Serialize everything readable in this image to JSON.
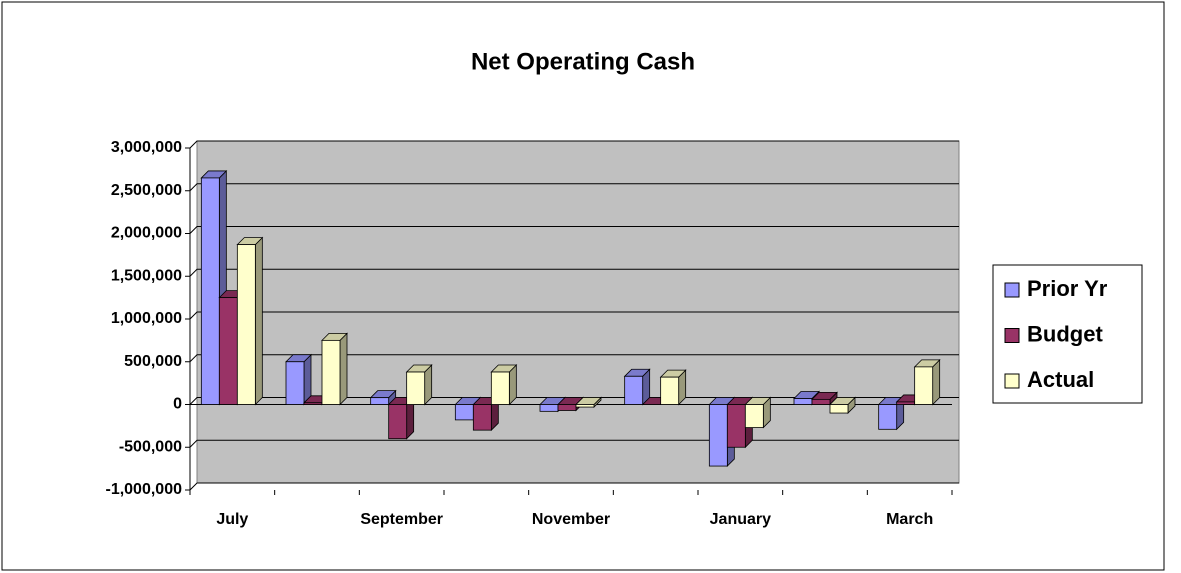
{
  "chart_data": {
    "type": "bar",
    "title": "Net Operating Cash",
    "categories": [
      "July",
      null,
      "September",
      null,
      "November",
      null,
      "January",
      null,
      "March"
    ],
    "series": [
      {
        "name": "Prior Yr",
        "color": "#9999ff",
        "values": [
          2650000,
          500000,
          80000,
          -180000,
          -80000,
          330000,
          -720000,
          70000,
          -290000
        ]
      },
      {
        "name": "Budget",
        "color": "#993366",
        "values": [
          1250000,
          20000,
          -400000,
          -300000,
          -70000,
          0,
          -500000,
          60000,
          30000
        ]
      },
      {
        "name": "Actual",
        "color": "#ffffcc",
        "values": [
          1870000,
          750000,
          380000,
          380000,
          -30000,
          320000,
          -270000,
          -100000,
          440000
        ]
      }
    ],
    "ylim": [
      -1000000,
      3000000
    ],
    "yticks": [
      {
        "value": -1000000,
        "label": "-1,000,000"
      },
      {
        "value": -500000,
        "label": "-500,000"
      },
      0,
      {
        "value": 500000,
        "label": "500,000"
      },
      {
        "value": 1000000,
        "label": "1,000,000"
      },
      {
        "value": 1500000,
        "label": "1,500,000"
      },
      {
        "value": 2000000,
        "label": "2,000,000"
      },
      {
        "value": 2500000,
        "label": "2,500,000"
      },
      {
        "value": 3000000,
        "label": "3,000,000"
      }
    ],
    "grid": true,
    "legend": "right"
  }
}
